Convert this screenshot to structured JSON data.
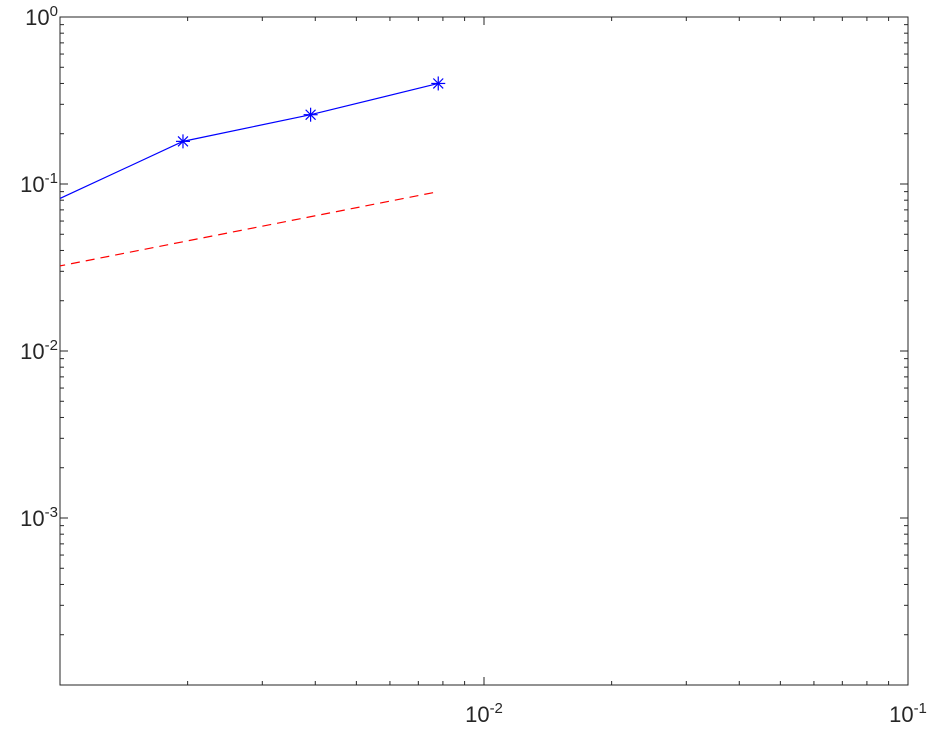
{
  "chart_data": {
    "type": "line",
    "title": "",
    "xlabel": "",
    "ylabel": "",
    "x_scale": "log",
    "y_scale": "log",
    "xlim": [
      0.001,
      0.1
    ],
    "ylim": [
      0.0001,
      1
    ],
    "grid": false,
    "x_ticks": [
      {
        "value": 0.01,
        "base": "10",
        "exp": "-2"
      },
      {
        "value": 0.1,
        "base": "10",
        "exp": "-1"
      }
    ],
    "y_ticks": [
      {
        "value": 1,
        "base": "10",
        "exp": "0"
      },
      {
        "value": 0.1,
        "base": "10",
        "exp": "-1"
      },
      {
        "value": 0.01,
        "base": "10",
        "exp": "-2"
      },
      {
        "value": 0.001,
        "base": "10",
        "exp": "-3"
      }
    ],
    "series": [
      {
        "color": "#0000ff",
        "line_style": "solid",
        "marker": "asterisk",
        "x": [
          0.00098,
          0.00195,
          0.0039,
          0.0078
        ],
        "y": [
          0.08,
          0.18,
          0.26,
          0.4
        ],
        "marker_indices": [
          1,
          2,
          3
        ]
      },
      {
        "color": "#ff0000",
        "line_style": "dashed",
        "marker": "none",
        "x": [
          0.00098,
          0.0078
        ],
        "y": [
          0.032,
          0.09
        ]
      }
    ]
  }
}
